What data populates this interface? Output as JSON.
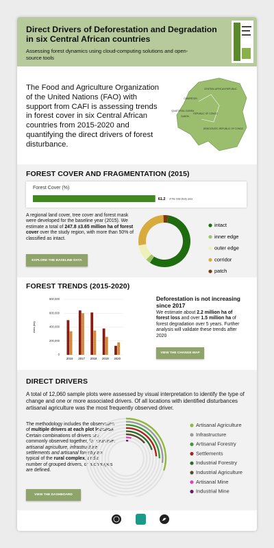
{
  "header": {
    "title": "Direct Drivers of Deforestation and Degradation in six Central African countries",
    "subtitle": "Assessing forest dynamics using cloud-computing solutions and open-source tools"
  },
  "intro": {
    "text": "The Food and Agriculture Organization of the United Nations (FAO) with support from CAFI is assessing trends in forest cover in six Central African countries from 2015-2020 and quantifying the direct drivers of forest disturbance.",
    "map_labels": [
      "CENTRAL AFRICAN REPUBLIC",
      "CAMEROON",
      "EQUATORIAL GUINEA",
      "GABON",
      "REPUBLIC OF CONGO",
      "DEMOCRATIC REPUBLIC OF CONGO"
    ]
  },
  "forest_cover": {
    "heading": "FOREST COVER AND FRAGMENTATION (2015)",
    "text": [
      {
        "text": "A regional land cover, tree cover and forest mask were developed for the baseline year (2015). We estimate a total of "
      },
      {
        "text": "247.8 ±3.65 million ha of forest cover",
        "bold": true
      },
      {
        "text": " over the study region, with more than 50% of classified as intact."
      }
    ],
    "button": "EXPLORE THE BASELINE DATA"
  },
  "forest_trends": {
    "heading": "FOREST TRENDS (2015-2020)",
    "lead": "Deforestation is not increasing since 2017",
    "text": [
      {
        "text": "We estimate about "
      },
      {
        "text": "2.2 million ha of forest loss",
        "bold": true
      },
      {
        "text": " and over "
      },
      {
        "text": "1.5 million ha",
        "bold": true
      },
      {
        "text": " of forest degradation over 5 years. Further analysis will validate these trends after 2020"
      }
    ],
    "button": "VIEW THE CHANGE MAP"
  },
  "direct_drivers": {
    "heading": "DIRECT DRIVERS",
    "text": "A total of 12,060 sample plots were assessed by visual interpretation to identify the type of change and one or more associated drivers. Of all locations with identified disturbances artisanal agriculture was the most frequently observed driver.",
    "method": [
      {
        "text": "The methodology includes the observation of "
      },
      {
        "text": "multiple drivers at each plot location",
        "bold": true
      },
      {
        "text": ". Certain combinations of drivers are commonly observed together, for example: "
      },
      {
        "text": "artisanal agriculture, infrastructure, settlements and artisanal forestry",
        "italic": true
      },
      {
        "text": " are typical of the "
      },
      {
        "text": "rural complex",
        "bold": true
      },
      {
        "text": ", and a number of grouped drivers, or archetypes are defined."
      }
    ],
    "button": "VIEW THE DASHBOARD"
  },
  "chart_data": [
    {
      "type": "hbar",
      "title": "Forest Cover (%)",
      "values": [
        61.2
      ],
      "color": "#3f8a1e",
      "xlim": [
        0,
        100
      ],
      "note": "of the total study area"
    },
    {
      "type": "donut",
      "categories": [
        "intact",
        "inner edge",
        "outer edge",
        "corridor",
        "patch"
      ],
      "values": [
        57,
        3,
        10,
        27,
        3
      ],
      "colors": [
        "#1f6b10",
        "#9cc46a",
        "#eef0b8",
        "#d9aa3c",
        "#7a3a10"
      ]
    },
    {
      "type": "bar",
      "ylabel": "Area (ha)",
      "categories": [
        "2016",
        "2017",
        "2018",
        "2019",
        "2020"
      ],
      "series": [
        {
          "color": "#8b1a10",
          "values": [
            500000,
            640000,
            610000,
            380000,
            130000
          ]
        },
        {
          "color": "#d08a3a",
          "values": [
            340000,
            600000,
            350000,
            260000,
            180000
          ]
        }
      ],
      "ylim": [
        0,
        800000
      ],
      "yticks": [
        0,
        {
          "value": 200000,
          "label": "200,000"
        },
        {
          "value": 400000,
          "label": "400,000"
        },
        {
          "value": 600000,
          "label": "600,000"
        },
        {
          "value": 800000,
          "label": "800,000"
        }
      ]
    },
    {
      "type": "radial",
      "categories": [
        "Artisanal Agriculture",
        "Infrastructure",
        "Artisanal Forestry",
        "Settlements",
        "Industrial Forestry",
        "Industrial Agriculture",
        "Artisanal Mine",
        "Industrial Mine"
      ],
      "values": [
        30,
        27,
        25,
        24,
        20,
        14,
        4,
        2
      ],
      "colors": [
        "#8fb83c",
        "#9a9a9a",
        "#3a9a3a",
        "#b0201c",
        "#2e6a2a",
        "#5a4a2a",
        "#e040c0",
        "#6a1a6a"
      ]
    }
  ]
}
